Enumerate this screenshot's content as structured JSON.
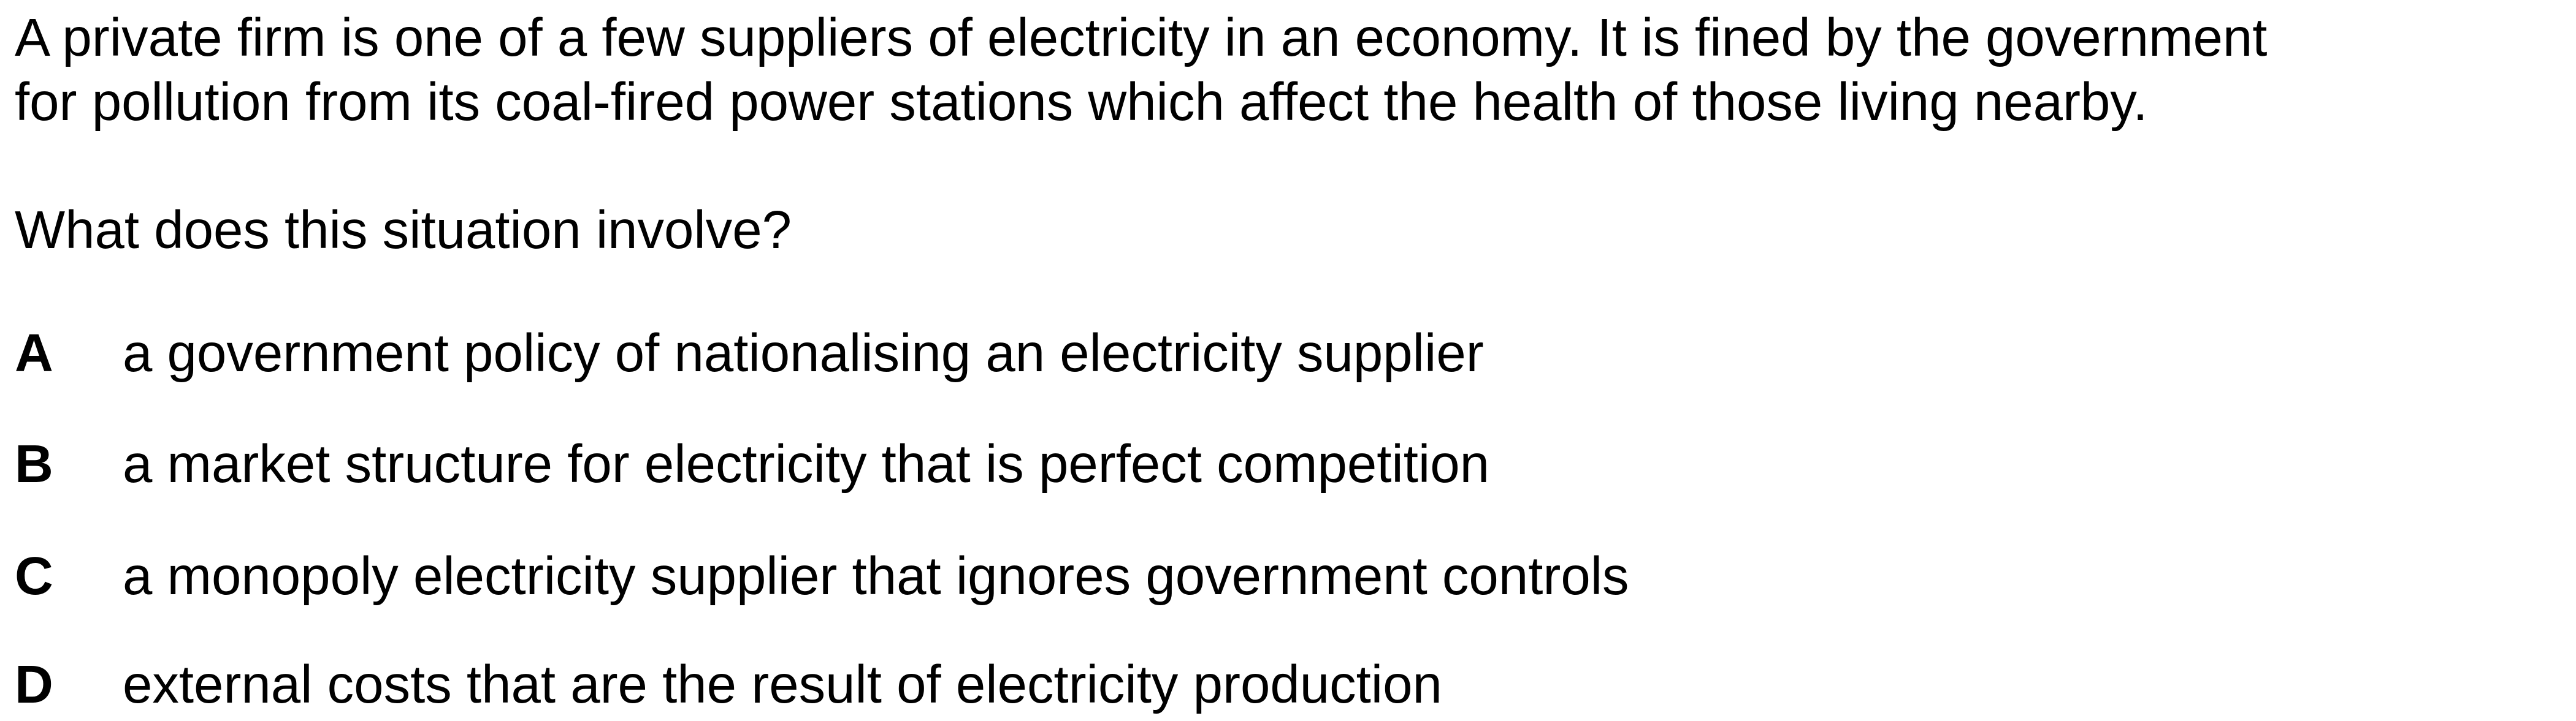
{
  "stem": {
    "line1": "A private firm is one of a few suppliers of electricity in an economy. It is fined by the government",
    "line2": "for pollution from its coal-fired power stations which affect the health of those living nearby."
  },
  "question": "What does this situation involve?",
  "options": [
    {
      "letter": "A",
      "text": "a government policy of nationalising an electricity supplier"
    },
    {
      "letter": "B",
      "text": "a market structure for electricity that is perfect competition"
    },
    {
      "letter": "C",
      "text": "a monopoly electricity supplier that ignores government controls"
    },
    {
      "letter": "D",
      "text": "external costs that are the result of electricity production"
    }
  ]
}
